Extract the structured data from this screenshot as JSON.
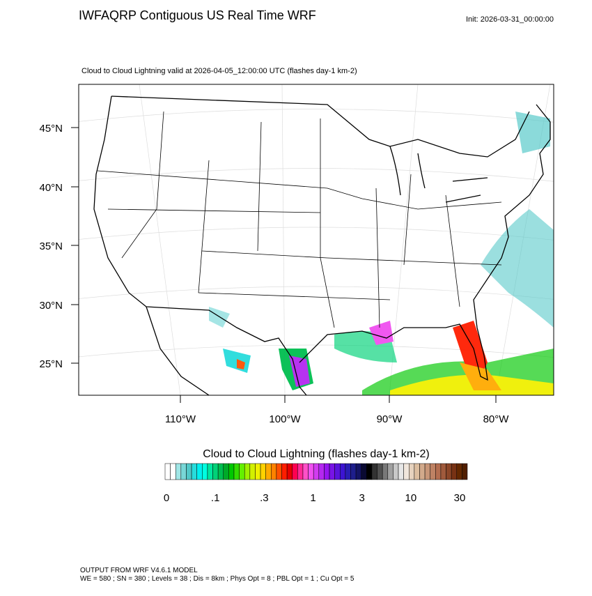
{
  "header": {
    "title": "IWFAQRP Contiguous US Real Time WRF",
    "init": "Init: 2026-03-31_00:00:00",
    "subtitle": "Cloud to Cloud Lightning valid at 2026-04-05_12:00:00 UTC   (flashes day-1 km-2)"
  },
  "map": {
    "lat_labels": [
      "45°N",
      "40°N",
      "35°N",
      "30°N",
      "25°N"
    ],
    "lon_labels": [
      "110°W",
      "100°W",
      "90°W",
      "80°W"
    ]
  },
  "colorbar": {
    "title": "Cloud to Cloud Lightning  (flashes day-1 km-2)",
    "labels": [
      "0",
      ".1",
      ".3",
      "1",
      "3",
      "10",
      "30"
    ],
    "colors": [
      "#ffffff",
      "#ffffff",
      "#a0e6e6",
      "#78d7d7",
      "#50c8c8",
      "#28dcdc",
      "#00f0f0",
      "#00ffe0",
      "#00e6a0",
      "#00d278",
      "#00be50",
      "#00aa28",
      "#00c800",
      "#32dc00",
      "#64f000",
      "#a0f000",
      "#d2f000",
      "#f0f000",
      "#ffd200",
      "#ffaa00",
      "#ff8200",
      "#ff5000",
      "#ff1e00",
      "#e60000",
      "#ff0050",
      "#ff2896",
      "#ff50c8",
      "#f050f0",
      "#d23cf0",
      "#b428f0",
      "#9614f0",
      "#7814e6",
      "#5a14dc",
      "#3c14d2",
      "#281eb4",
      "#1e1e8c",
      "#141464",
      "#0a0a32",
      "#000000",
      "#323232",
      "#505050",
      "#787878",
      "#a0a0a0",
      "#c8c8c8",
      "#e6e6e6",
      "#f0e6dc",
      "#e6d2be",
      "#dcbea0",
      "#d2aa8c",
      "#c89678",
      "#be8264",
      "#b46e50",
      "#a05a3c",
      "#8c4628",
      "#783214",
      "#642800",
      "#501e00"
    ]
  },
  "footer": {
    "line1": "OUTPUT FROM WRF V4.6.1 MODEL",
    "line2": "WE = 580 ; SN = 380 ; Levels = 38 ; Dis = 8km ; Phys Opt = 8 ; PBL Opt = 1 ; Cu Opt = 5"
  }
}
